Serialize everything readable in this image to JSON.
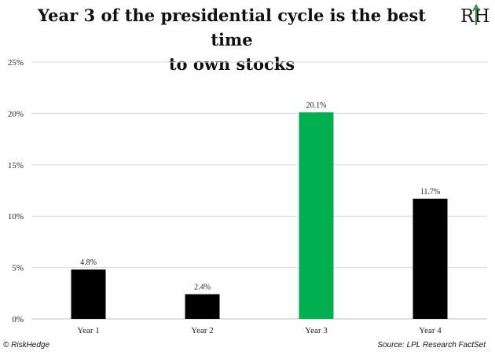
{
  "header": {
    "title_line1": "Year 3 of the presidential cycle is the best time",
    "title_line2": "to own stocks",
    "logo_text": "RH"
  },
  "footer": {
    "copyright": "© RiskHedge",
    "source": "Source: LPL Research FactSet"
  },
  "colors": {
    "default_bar": "#000000",
    "highlight_bar": "#00b050",
    "grid": "#d9d9d9",
    "logo_letters": "#1a1a1a",
    "logo_arrow": "#2e8b3a"
  },
  "chart_data": {
    "type": "bar",
    "title": "Year 3 of the presidential cycle is the best time to own stocks",
    "xlabel": "",
    "ylabel": "",
    "categories": [
      "Year 1",
      "Year 2",
      "Year 3",
      "Year 4"
    ],
    "values": [
      4.8,
      2.4,
      20.1,
      11.7
    ],
    "data_labels": [
      "4.8%",
      "2.4%",
      "20.1%",
      "11.7%"
    ],
    "highlight_index": 2,
    "ylim": [
      0,
      25
    ],
    "yticks": [
      0,
      5,
      10,
      15,
      20,
      25
    ],
    "ytick_labels": [
      "0%",
      "5%",
      "10%",
      "15%",
      "20%",
      "25%"
    ],
    "grid": true,
    "legend": "none"
  }
}
